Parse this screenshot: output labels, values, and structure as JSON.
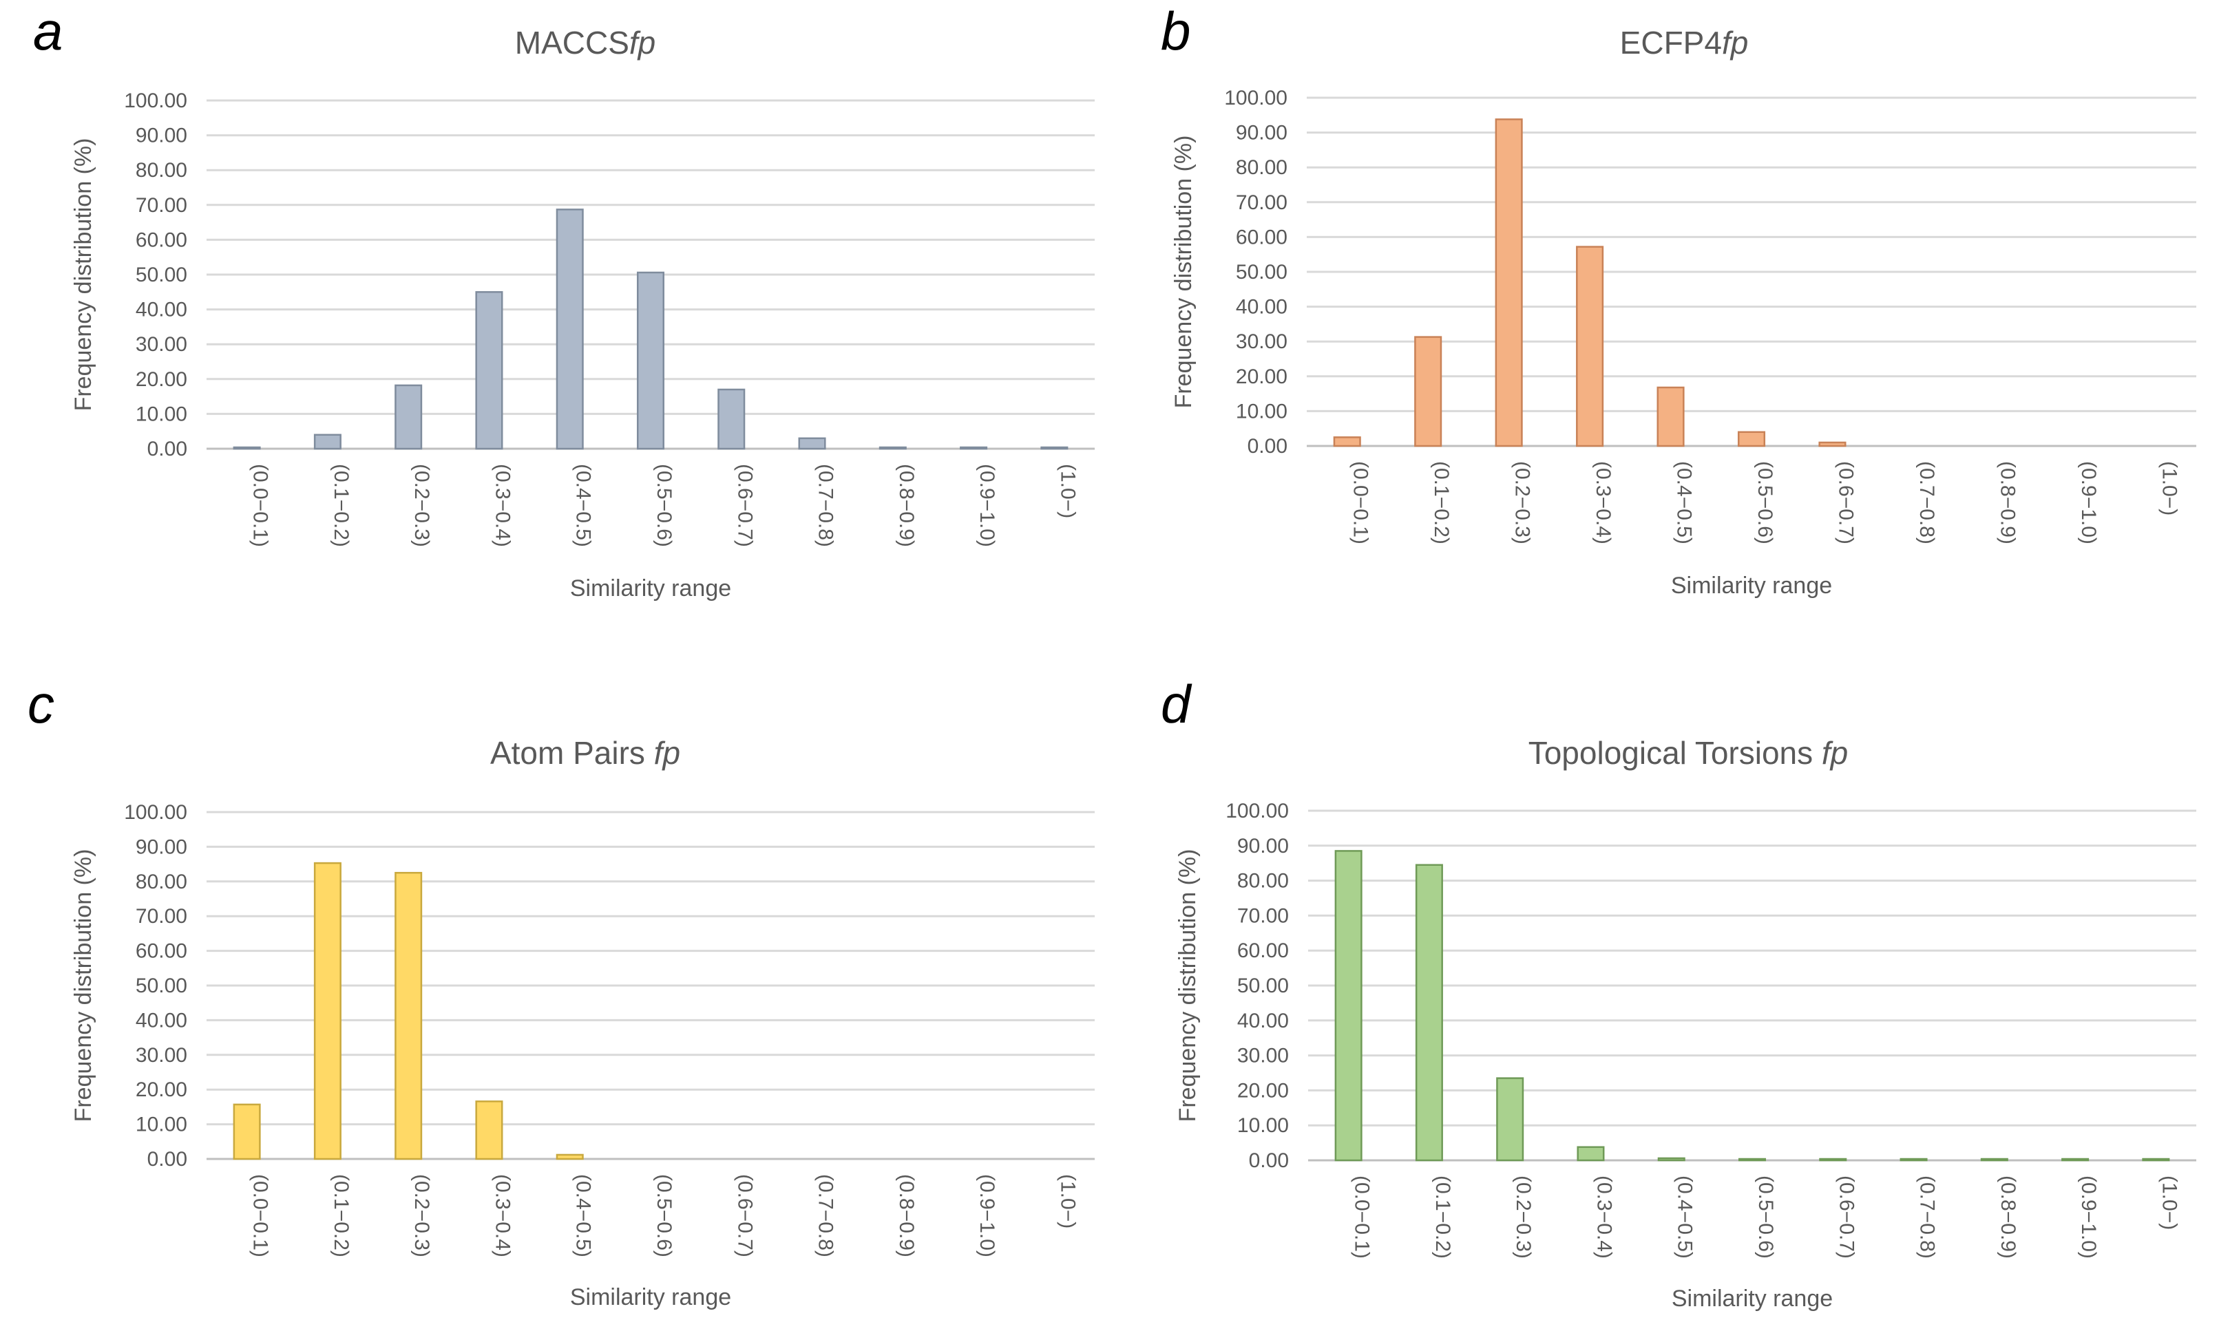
{
  "panel_labels": [
    "a",
    "b",
    "c",
    "d"
  ],
  "chart_data": [
    {
      "type": "bar",
      "title_main": "MACCS",
      "title_fp": "fp",
      "title_sep": "",
      "xlabel": "Similarity range",
      "ylabel": "Frequency distribution (%)",
      "ylim": [
        0,
        100
      ],
      "yticks": [
        "0.00",
        "10.00",
        "20.00",
        "30.00",
        "40.00",
        "50.00",
        "60.00",
        "70.00",
        "80.00",
        "90.00",
        "100.00"
      ],
      "categories": [
        "(0.0−0.1)",
        "(0.1−0.2)",
        "(0.2−0.3)",
        "(0.3−0.4)",
        "(0.4−0.5)",
        "(0.5−0.6)",
        "(0.6−0.7)",
        "(0.7−0.8)",
        "(0.8−0.9)",
        "(0.9−1.0)",
        "(1.0−)"
      ],
      "values": [
        0.2,
        4.0,
        18.2,
        45.0,
        68.7,
        50.6,
        17.0,
        3.0,
        0.2,
        0.1,
        0.1
      ],
      "color": "#adb9ca",
      "stroke": "#7f8c9d",
      "grid": true
    },
    {
      "type": "bar",
      "title_main": "ECFP4",
      "title_fp": "fp",
      "title_sep": "",
      "xlabel": "Similarity range",
      "ylabel": "Frequency distribution (%)",
      "ylim": [
        0,
        100
      ],
      "yticks": [
        "0.00",
        "10.00",
        "20.00",
        "30.00",
        "40.00",
        "50.00",
        "60.00",
        "70.00",
        "80.00",
        "90.00",
        "100.00"
      ],
      "categories": [
        "(0.0−0.1)",
        "(0.1−0.2)",
        "(0.2−0.3)",
        "(0.3−0.4)",
        "(0.4−0.5)",
        "(0.5−0.6)",
        "(0.6−0.7)",
        "(0.7−0.8)",
        "(0.8−0.9)",
        "(0.9−1.0)",
        "(1.0−)"
      ],
      "values": [
        2.5,
        31.3,
        93.8,
        57.2,
        16.8,
        4.0,
        1.0,
        0.0,
        0.0,
        0.0,
        0.0
      ],
      "color": "#f4b183",
      "stroke": "#c98257",
      "grid": true
    },
    {
      "type": "bar",
      "title_main": "Atom Pairs",
      "title_fp": "fp",
      "title_sep": " ",
      "xlabel": "Similarity range",
      "ylabel": "Frequency distribution (%)",
      "ylim": [
        0,
        100
      ],
      "yticks": [
        "0.00",
        "10.00",
        "20.00",
        "30.00",
        "40.00",
        "50.00",
        "60.00",
        "70.00",
        "80.00",
        "90.00",
        "100.00"
      ],
      "categories": [
        "(0.0−0.1)",
        "(0.1−0.2)",
        "(0.2−0.3)",
        "(0.3−0.4)",
        "(0.4−0.5)",
        "(0.5−0.6)",
        "(0.6−0.7)",
        "(0.7−0.8)",
        "(0.8−0.9)",
        "(0.9−1.0)",
        "(1.0−)"
      ],
      "values": [
        15.7,
        85.3,
        82.5,
        16.6,
        1.2,
        0.0,
        0.0,
        0.0,
        0.0,
        0.0,
        0.0
      ],
      "color": "#ffd966",
      "stroke": "#c9a93e",
      "grid": true
    },
    {
      "type": "bar",
      "title_main": "Topological Torsions",
      "title_fp": "fp",
      "title_sep": " ",
      "xlabel": "Similarity range",
      "ylabel": "Frequency distribution (%)",
      "ylim": [
        0,
        100
      ],
      "yticks": [
        "0.00",
        "10.00",
        "20.00",
        "30.00",
        "40.00",
        "50.00",
        "60.00",
        "70.00",
        "80.00",
        "90.00",
        "100.00"
      ],
      "categories": [
        "(0.0−0.1)",
        "(0.1−0.2)",
        "(0.2−0.3)",
        "(0.3−0.4)",
        "(0.4−0.5)",
        "(0.5−0.6)",
        "(0.6−0.7)",
        "(0.7−0.8)",
        "(0.8−0.9)",
        "(0.9−1.0)",
        "(1.0−)"
      ],
      "values": [
        88.5,
        84.5,
        23.5,
        3.8,
        0.6,
        0.3,
        0.2,
        0.2,
        0.2,
        0.2,
        0.2
      ],
      "color": "#a9d18e",
      "stroke": "#6f9a57",
      "grid": true
    }
  ]
}
